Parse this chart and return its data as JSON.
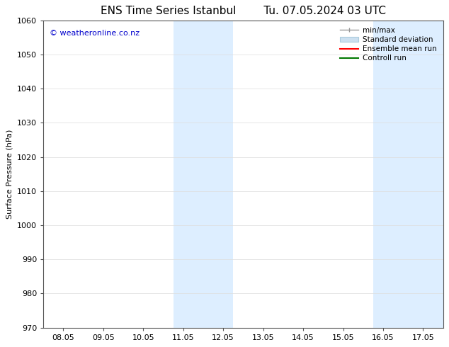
{
  "title_left": "ENS Time Series Istanbul",
  "title_right": "Tu. 07.05.2024 03 UTC",
  "ylabel": "Surface Pressure (hPa)",
  "ylim": [
    970,
    1060
  ],
  "yticks": [
    970,
    980,
    990,
    1000,
    1010,
    1020,
    1030,
    1040,
    1050,
    1060
  ],
  "xtick_labels": [
    "08.05",
    "09.05",
    "10.05",
    "11.05",
    "12.05",
    "13.05",
    "14.05",
    "15.05",
    "16.05",
    "17.05"
  ],
  "xtick_positions": [
    0,
    1,
    2,
    3,
    4,
    5,
    6,
    7,
    8,
    9
  ],
  "xlim": [
    -0.5,
    9.5
  ],
  "shaded_regions": [
    {
      "x_start": 2.75,
      "x_end": 4.25,
      "color": "#ddeeff"
    },
    {
      "x_start": 7.75,
      "x_end": 9.5,
      "color": "#ddeeff"
    }
  ],
  "watermark": "© weatheronline.co.nz",
  "watermark_color": "#0000cc",
  "watermark_fontsize": 8,
  "bg_color": "#ffffff",
  "grid_color": "#dddddd",
  "title_fontsize": 11,
  "axis_fontsize": 8,
  "tick_fontsize": 8,
  "legend_fontsize": 7.5,
  "min_max_color": "#999999",
  "std_dev_color": "#cce0f0",
  "std_dev_edge_color": "#aaccdd",
  "ensemble_color": "#ff0000",
  "control_color": "#007700"
}
